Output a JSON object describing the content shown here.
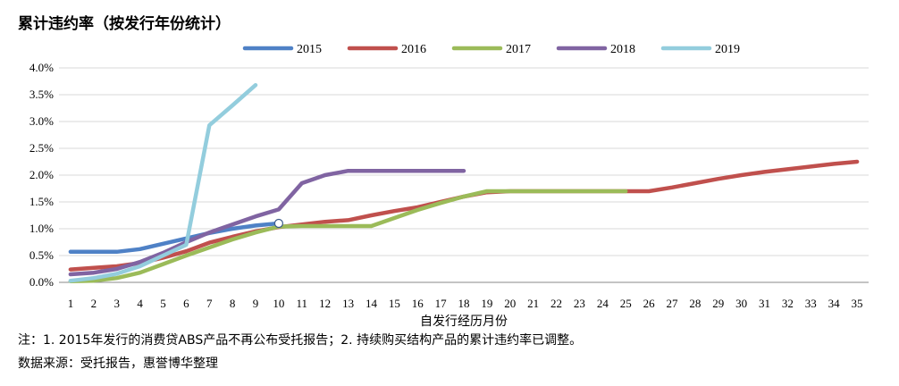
{
  "title": "累计违约率（按发行年份统计）",
  "notes": {
    "line1": "注：1. 2015年发行的消费贷ABS产品不再公布受托报告；2. 持续购买结构产品的累计违约率已调整。",
    "line2": "数据来源：受托报告，惠誉博华整理"
  },
  "chart_data": {
    "type": "line",
    "title": "累计违约率（按发行年份统计）",
    "xlabel": "自发行经历月份",
    "ylabel": "",
    "categories": [
      "1",
      "2",
      "3",
      "4",
      "5",
      "6",
      "7",
      "8",
      "9",
      "10",
      "11",
      "12",
      "13",
      "14",
      "15",
      "16",
      "17",
      "18",
      "19",
      "20",
      "21",
      "22",
      "23",
      "24",
      "25",
      "26",
      "27",
      "28",
      "29",
      "30",
      "31",
      "32",
      "33",
      "34",
      "35"
    ],
    "y_ticks": [
      "0.0%",
      "0.5%",
      "1.0%",
      "1.5%",
      "2.0%",
      "2.5%",
      "3.0%",
      "3.5%",
      "4.0%"
    ],
    "ylim": [
      0,
      4.0
    ],
    "y_unit": "%",
    "grid": true,
    "legend_position": "top",
    "series": [
      {
        "name": "2015",
        "color": "#4f81c6",
        "x": [
          1,
          2,
          3,
          4,
          5,
          6,
          7,
          8,
          9,
          10
        ],
        "values": [
          0.57,
          0.57,
          0.57,
          0.62,
          0.72,
          0.82,
          0.92,
          1.0,
          1.06,
          1.1
        ]
      },
      {
        "name": "2016",
        "color": "#c0504d",
        "x": [
          1,
          2,
          3,
          4,
          5,
          6,
          7,
          8,
          9,
          10,
          11,
          12,
          13,
          14,
          15,
          16,
          17,
          18,
          19,
          20,
          21,
          22,
          23,
          24,
          25,
          26,
          27,
          28,
          29,
          30,
          31,
          32,
          33,
          34,
          35
        ],
        "values": [
          0.24,
          0.27,
          0.3,
          0.36,
          0.46,
          0.58,
          0.74,
          0.85,
          0.95,
          1.03,
          1.08,
          1.13,
          1.16,
          1.25,
          1.33,
          1.4,
          1.5,
          1.6,
          1.68,
          1.7,
          1.7,
          1.7,
          1.7,
          1.7,
          1.7,
          1.7,
          1.77,
          1.85,
          1.93,
          2.0,
          2.06,
          2.11,
          2.16,
          2.21,
          2.25
        ]
      },
      {
        "name": "2017",
        "color": "#9bbb59",
        "x": [
          1,
          2,
          3,
          4,
          5,
          6,
          7,
          8,
          9,
          10,
          11,
          12,
          13,
          14,
          15,
          16,
          17,
          18,
          19,
          20,
          21,
          22,
          23,
          24,
          25
        ],
        "values": [
          0.02,
          0.03,
          0.08,
          0.18,
          0.34,
          0.5,
          0.65,
          0.8,
          0.93,
          1.04,
          1.05,
          1.05,
          1.05,
          1.05,
          1.2,
          1.35,
          1.48,
          1.6,
          1.7,
          1.7,
          1.7,
          1.7,
          1.7,
          1.7,
          1.7
        ]
      },
      {
        "name": "2018",
        "color": "#8064a2",
        "x": [
          1,
          2,
          3,
          4,
          5,
          6,
          7,
          8,
          9,
          10,
          11,
          12,
          13,
          14,
          15,
          16,
          17,
          18
        ],
        "values": [
          0.15,
          0.18,
          0.25,
          0.38,
          0.55,
          0.75,
          0.93,
          1.08,
          1.23,
          1.36,
          1.85,
          2.0,
          2.08,
          2.08,
          2.08,
          2.08,
          2.08,
          2.08
        ]
      },
      {
        "name": "2019",
        "color": "#93cddd",
        "x": [
          1,
          2,
          3,
          4,
          5,
          6,
          7,
          8,
          9
        ],
        "values": [
          0.03,
          0.08,
          0.16,
          0.3,
          0.5,
          0.7,
          2.93,
          3.3,
          3.68
        ]
      }
    ]
  }
}
